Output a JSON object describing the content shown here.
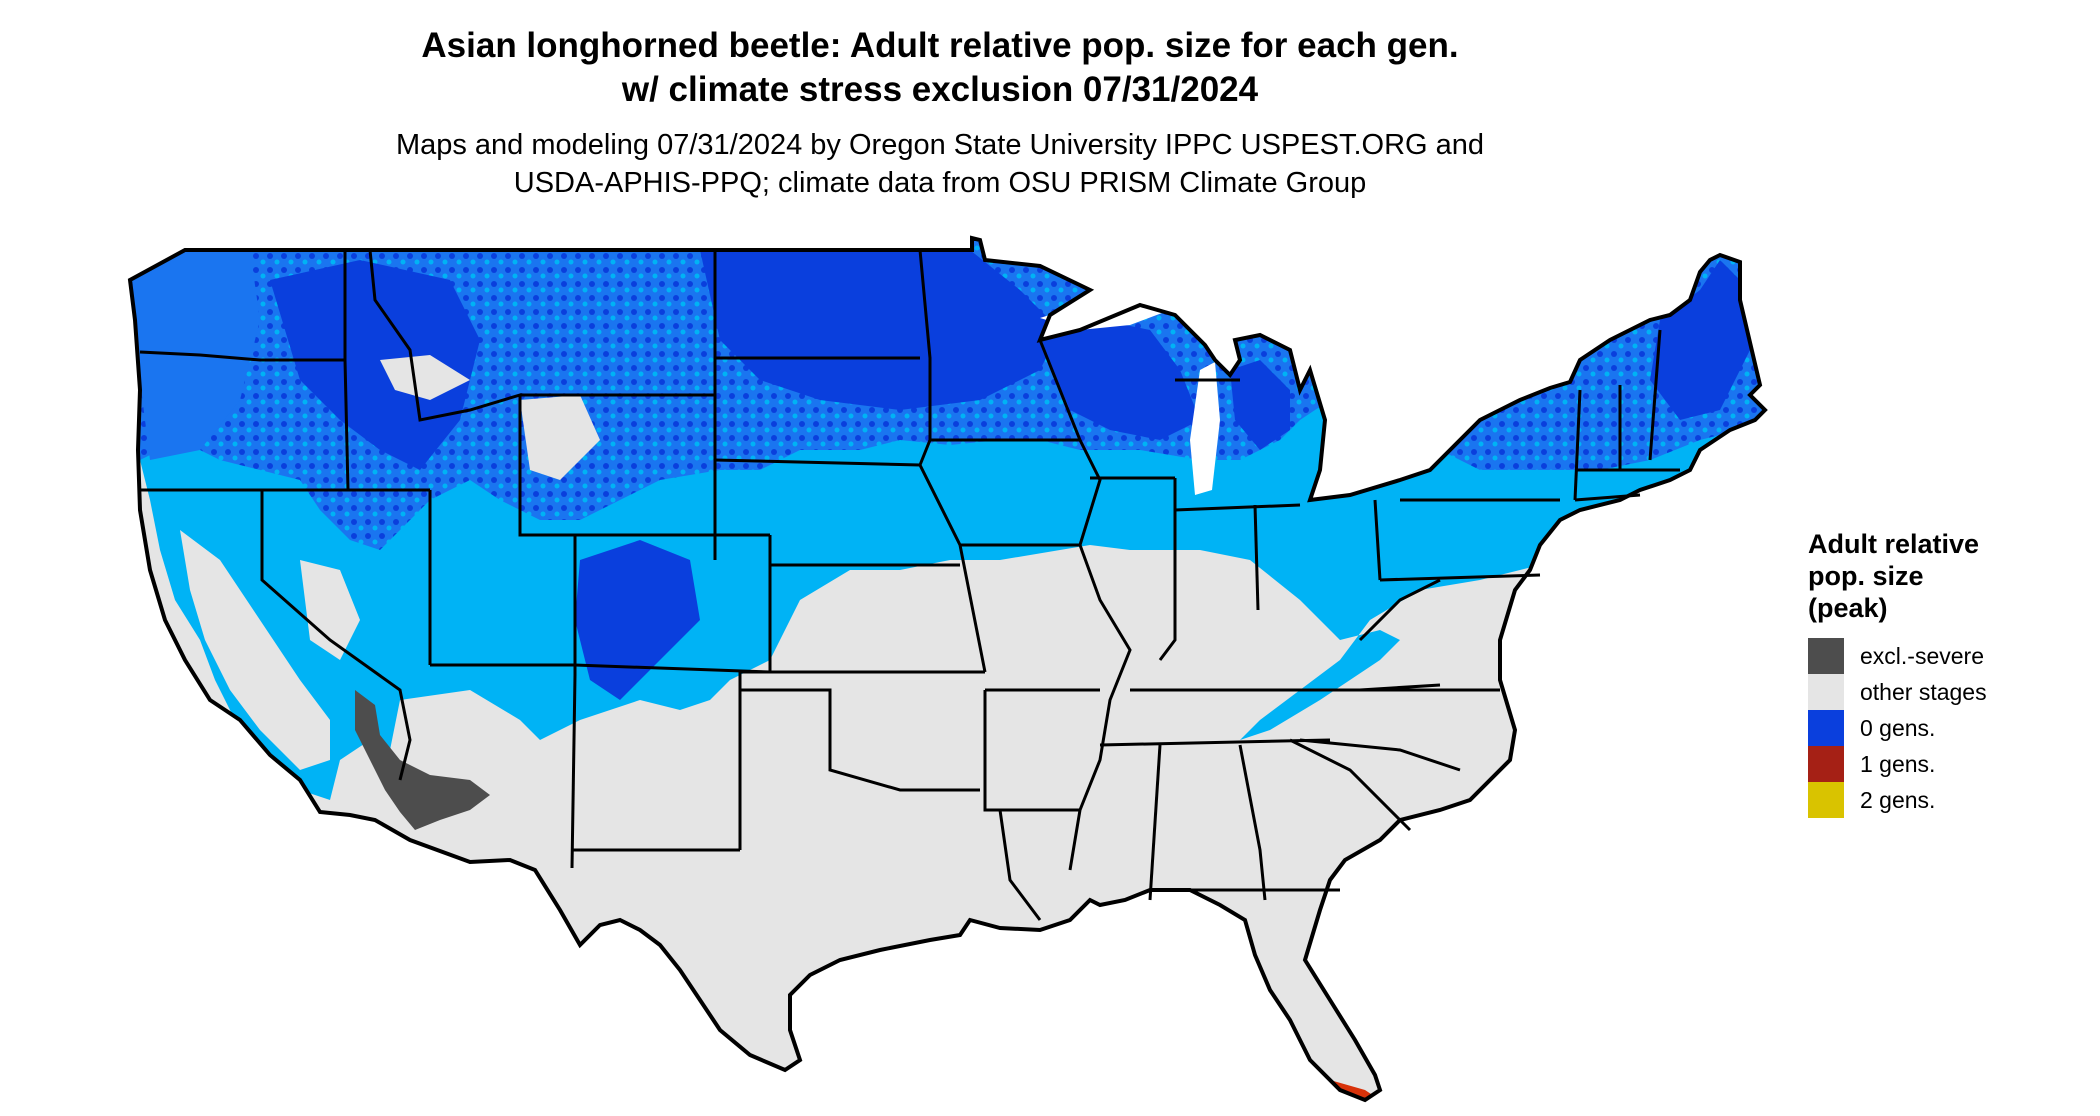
{
  "title": {
    "line1": "Asian longhorned beetle: Adult relative pop. size for each gen.",
    "line2": "w/ climate stress exclusion 07/31/2024"
  },
  "subtitle": {
    "line1": "Maps and modeling 07/31/2024 by Oregon State University IPPC USPEST.ORG and",
    "line2": "USDA-APHIS-PPQ; climate data from OSU PRISM Climate Group"
  },
  "legend": {
    "title_line1": "Adult relative",
    "title_line2": "pop. size",
    "title_line3": "(peak)",
    "items": [
      {
        "label": "excl.-severe",
        "color": "#4d4d4d"
      },
      {
        "label": "other stages",
        "color": "#e5e5e5"
      },
      {
        "label": "0 gens.",
        "color": "#0a3fdd"
      },
      {
        "label": "1 gens.",
        "color": "#a52015"
      },
      {
        "label": "2 gens.",
        "color": "#d9c300"
      }
    ]
  },
  "colors": {
    "other_stages": "#e5e5e5",
    "light_blue": "#00b3f5",
    "mid_blue": "#1a75f0",
    "dark_blue": "#0a3fdd",
    "excluded": "#4d4d4d",
    "one_gen": "#d8320a",
    "border": "#000000"
  }
}
